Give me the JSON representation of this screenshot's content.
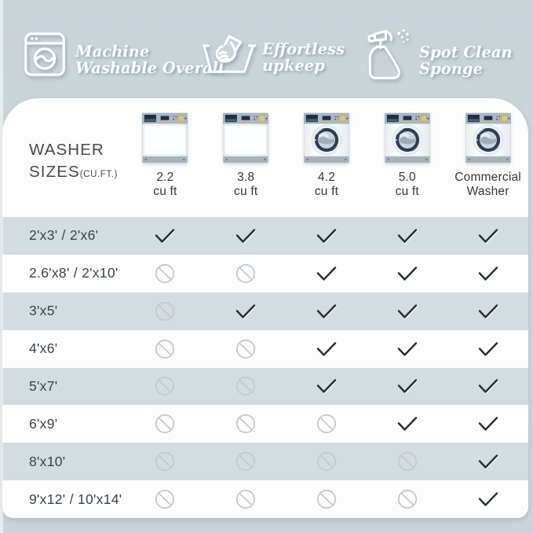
{
  "features": [
    {
      "icon": "washing-machine-icon",
      "line1": "Machine",
      "line2": "Washable Overall"
    },
    {
      "icon": "hand-wash-icon",
      "line1": "Effortless",
      "line2": "upkeep"
    },
    {
      "icon": "spray-bottle-icon",
      "line1": "Spot Clean",
      "line2": "Sponge"
    }
  ],
  "table": {
    "title_line1": "WASHER",
    "title_line2": "SIZES",
    "title_unit": "(CU.FT.)",
    "columns": [
      {
        "label_line1": "2.2",
        "label_line2": "cu ft",
        "washer_type": "plain"
      },
      {
        "label_line1": "3.8",
        "label_line2": "cu ft",
        "washer_type": "plain"
      },
      {
        "label_line1": "4.2",
        "label_line2": "cu ft",
        "washer_type": "porthole"
      },
      {
        "label_line1": "5.0",
        "label_line2": "cu ft",
        "washer_type": "porthole"
      },
      {
        "label_line1": "Commercial",
        "label_line2": "Washer",
        "washer_type": "porthole"
      }
    ],
    "rows": [
      {
        "label": "2'x3'  /  2'x6'",
        "cells": [
          "yes",
          "yes",
          "yes",
          "yes",
          "yes"
        ]
      },
      {
        "label": "2.6'x8' / 2'x10'",
        "cells": [
          "no",
          "no",
          "yes",
          "yes",
          "yes"
        ]
      },
      {
        "label": "3'x5'",
        "cells": [
          "no",
          "yes",
          "yes",
          "yes",
          "yes"
        ]
      },
      {
        "label": "4'x6'",
        "cells": [
          "no",
          "no",
          "yes",
          "yes",
          "yes"
        ]
      },
      {
        "label": "5'x7'",
        "cells": [
          "no",
          "no",
          "yes",
          "yes",
          "yes"
        ]
      },
      {
        "label": "6'x9'",
        "cells": [
          "no",
          "no",
          "no",
          "yes",
          "yes"
        ]
      },
      {
        "label": "8'x10'",
        "cells": [
          "no",
          "no",
          "no",
          "no",
          "yes"
        ]
      },
      {
        "label": "9'x12' / 10'x14'",
        "cells": [
          "no",
          "no",
          "no",
          "no",
          "yes"
        ]
      }
    ]
  },
  "chart_data": {
    "type": "table",
    "title": "WASHER SIZES (CU.FT.)",
    "columns": [
      "2.2 cu ft",
      "3.8 cu ft",
      "4.2 cu ft",
      "5.0 cu ft",
      "Commercial Washer"
    ],
    "row_labels": [
      "2'x3' / 2'x6'",
      "2.6'x8' / 2'x10'",
      "3'x5'",
      "4'x6'",
      "5'x7'",
      "6'x9'",
      "8'x10'",
      "9'x12' / 10'x14'"
    ],
    "values": [
      [
        "yes",
        "yes",
        "yes",
        "yes",
        "yes"
      ],
      [
        "no",
        "no",
        "yes",
        "yes",
        "yes"
      ],
      [
        "no",
        "yes",
        "yes",
        "yes",
        "yes"
      ],
      [
        "no",
        "no",
        "yes",
        "yes",
        "yes"
      ],
      [
        "no",
        "no",
        "yes",
        "yes",
        "yes"
      ],
      [
        "no",
        "no",
        "no",
        "yes",
        "yes"
      ],
      [
        "no",
        "no",
        "no",
        "no",
        "yes"
      ],
      [
        "no",
        "no",
        "no",
        "no",
        "yes"
      ]
    ]
  },
  "colors": {
    "page_bg": "#cbd5d9",
    "card_bg": "#fdfdfd",
    "row_alt_bg": "#d3dce1",
    "check": "#262c33",
    "no_symbol": "#c4cace",
    "table_text": "#3c4349",
    "feature_text": "#fcfdfd"
  }
}
